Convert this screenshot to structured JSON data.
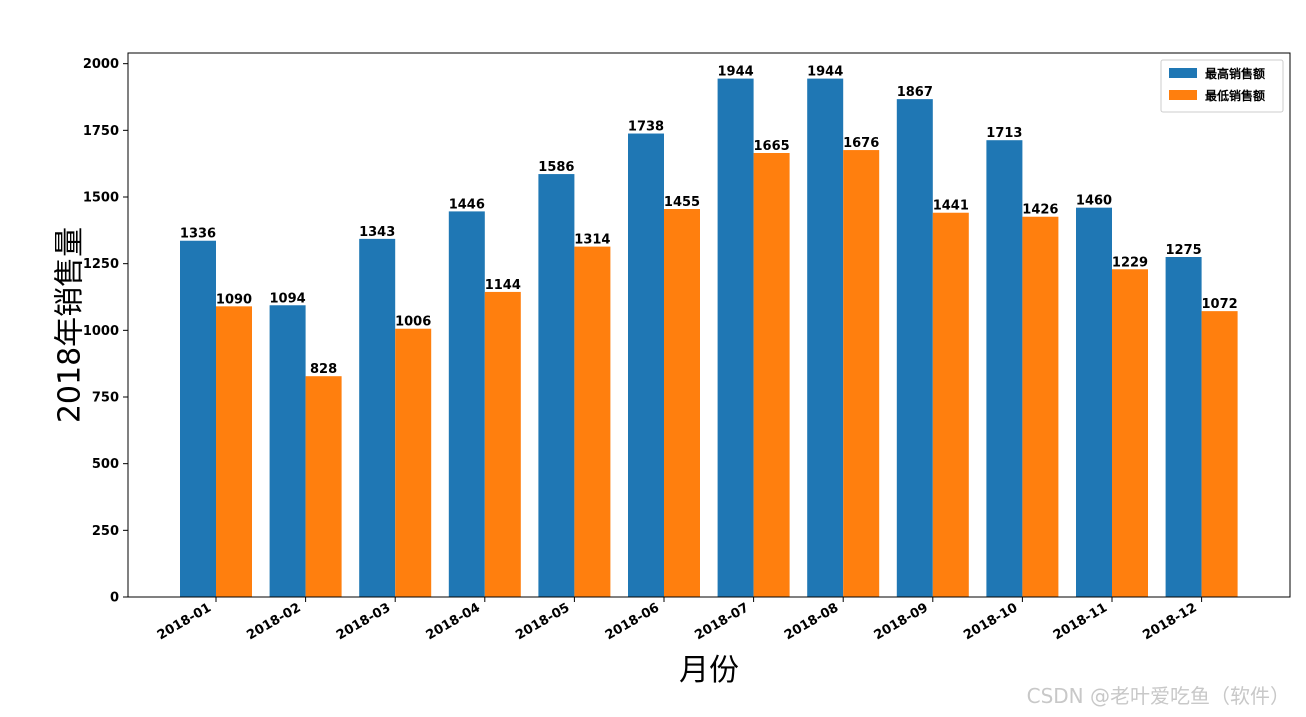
{
  "chart_data": {
    "type": "bar",
    "categories": [
      "2018-01",
      "2018-02",
      "2018-03",
      "2018-04",
      "2018-05",
      "2018-06",
      "2018-07",
      "2018-08",
      "2018-09",
      "2018-10",
      "2018-11",
      "2018-12"
    ],
    "series": [
      {
        "name": "最高销售额",
        "color": "#1f77b4",
        "values": [
          1336,
          1094,
          1343,
          1446,
          1586,
          1738,
          1944,
          1944,
          1867,
          1713,
          1460,
          1275
        ]
      },
      {
        "name": "最低销售额",
        "color": "#ff7f0e",
        "values": [
          1090,
          828,
          1006,
          1144,
          1314,
          1455,
          1665,
          1676,
          1441,
          1426,
          1229,
          1072
        ]
      }
    ],
    "xlabel": "月份",
    "ylabel": "2018年销售量",
    "ylim": [
      0,
      2040
    ],
    "yticks": [
      0,
      250,
      500,
      750,
      1000,
      1250,
      1500,
      1750,
      2000
    ],
    "legend_position": "top-right",
    "grid": false,
    "data_labels": true
  },
  "watermark": "CSDN @老叶爱吃鱼（软件）"
}
